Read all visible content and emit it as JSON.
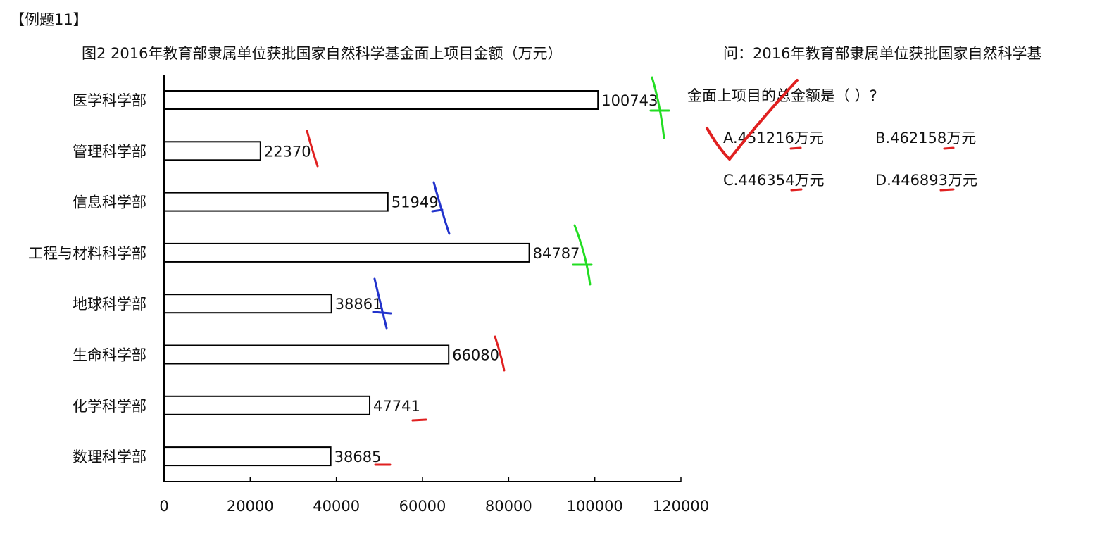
{
  "header": {
    "example_label": "【例题11】"
  },
  "question": {
    "line1": "问：2016年教育部隶属单位获批国家自然科学基",
    "line2": "金面上项目的总金额是（ ）?",
    "options": [
      {
        "key": "A",
        "text": "A.451216万元"
      },
      {
        "key": "B",
        "text": "B.462158万元"
      },
      {
        "key": "C",
        "text": "C.446354万元"
      },
      {
        "key": "D",
        "text": "D.446893万元"
      }
    ]
  },
  "ink_colors": {
    "red": "#e02020",
    "green": "#22dd22",
    "blue": "#2233cc"
  },
  "chart_data": {
    "type": "bar",
    "orientation": "horizontal",
    "title": "图2  2016年教育部隶属单位获批国家自然科学基金面上项目金额（万元）",
    "categories": [
      "医学科学部",
      "管理科学部",
      "信息科学部",
      "工程与材料科学部",
      "地球科学部",
      "生命科学部",
      "化学科学部",
      "数理科学部"
    ],
    "values": [
      100743,
      22370,
      51949,
      84787,
      38861,
      66080,
      47741,
      38685
    ],
    "xlim": [
      0,
      120000
    ],
    "xticks": [
      0,
      20000,
      40000,
      60000,
      80000,
      100000,
      120000
    ],
    "xlabel": "",
    "ylabel": "",
    "grid": false,
    "bar_fill": "#ffffff",
    "bar_stroke": "#000000"
  }
}
